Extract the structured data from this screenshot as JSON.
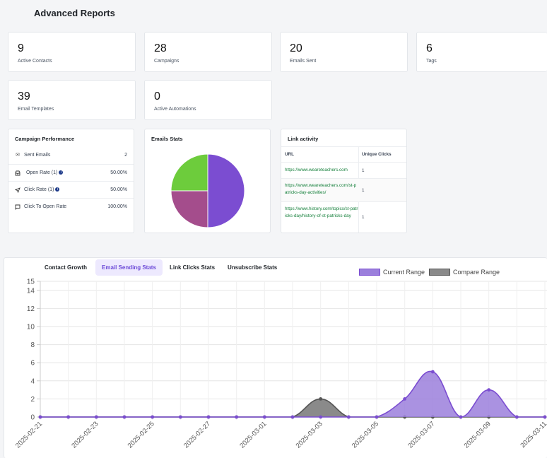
{
  "page": {
    "title": "Advanced Reports"
  },
  "stats": [
    {
      "value": "9",
      "label": "Active Contacts"
    },
    {
      "value": "28",
      "label": "Campaigns"
    },
    {
      "value": "20",
      "label": "Emails Sent"
    },
    {
      "value": "6",
      "label": "Tags"
    },
    {
      "value": "39",
      "label": "Email Templates"
    },
    {
      "value": "0",
      "label": "Active Automations"
    }
  ],
  "campaign_performance": {
    "title": "Campaign Performance",
    "rows": [
      {
        "icon": "envelope-icon",
        "label": "Sent Emails",
        "value": "2",
        "info": false
      },
      {
        "icon": "inbox-icon",
        "label": "Open Rate (1)",
        "value": "50.00%",
        "info": true
      },
      {
        "icon": "cursor-icon",
        "label": "Click Rate (1)",
        "value": "50.00%",
        "info": true
      },
      {
        "icon": "chat-icon",
        "label": "Click To Open Rate",
        "value": "100.00%",
        "info": false
      }
    ]
  },
  "emails_stats": {
    "title": "Emails Stats",
    "slices": [
      {
        "value": 50,
        "color": "#7b4dd1"
      },
      {
        "value": 25,
        "color": "#a44d8c"
      },
      {
        "value": 25,
        "color": "#6dcc3c"
      }
    ]
  },
  "link_activity": {
    "title": "Link activity",
    "columns": [
      "URL",
      "Unique Clicks"
    ],
    "rows": [
      {
        "url": "https://www.weareteachers.com",
        "clicks": "1"
      },
      {
        "url": "https://www.weareteachers.com/st-patricks-day-activities/",
        "clicks": "1"
      },
      {
        "url": "https://www.history.com/topics/st-patricks-day/history-of-st-patricks-day",
        "clicks": "1"
      }
    ]
  },
  "tabs": [
    {
      "label": "Contact Growth",
      "active": false
    },
    {
      "label": "Email Sending Stats",
      "active": true
    },
    {
      "label": "Link Clicks Stats",
      "active": false
    },
    {
      "label": "Unsubscribe Stats",
      "active": false
    }
  ],
  "chart_data": {
    "type": "area",
    "x": [
      "2025-02-21",
      "2025-02-22",
      "2025-02-23",
      "2025-02-24",
      "2025-02-25",
      "2025-02-26",
      "2025-02-27",
      "2025-02-28",
      "2025-03-01",
      "2025-03-02",
      "2025-03-03",
      "2025-03-04",
      "2025-03-05",
      "2025-03-06",
      "2025-03-07",
      "2025-03-08",
      "2025-03-09",
      "2025-03-10",
      "2025-03-11"
    ],
    "x_tick_labels": [
      "2025-02-21",
      "2025-02-23",
      "2025-02-25",
      "2025-02-27",
      "2025-03-01",
      "2025-03-03",
      "2025-03-05",
      "2025-03-07",
      "2025-03-09",
      "2025-03-11"
    ],
    "y_ticks": [
      0,
      2,
      4,
      6,
      8,
      10,
      12,
      14,
      15
    ],
    "ylim": [
      0,
      15
    ],
    "legend_position": "top-right",
    "series": [
      {
        "name": "Current Range",
        "color": "#7b4dd1",
        "fill": "#9b7fdc",
        "values": [
          0,
          0,
          0,
          0,
          0,
          0,
          0,
          0,
          0,
          0,
          0,
          0,
          0,
          2,
          5,
          0,
          3,
          0,
          0
        ]
      },
      {
        "name": "Compare Range",
        "color": "#555555",
        "fill": "#8a8a8a",
        "values": [
          0,
          0,
          0,
          0,
          0,
          0,
          0,
          0,
          0,
          0,
          2,
          0,
          0,
          0,
          0,
          0,
          0,
          0,
          0
        ]
      }
    ]
  }
}
